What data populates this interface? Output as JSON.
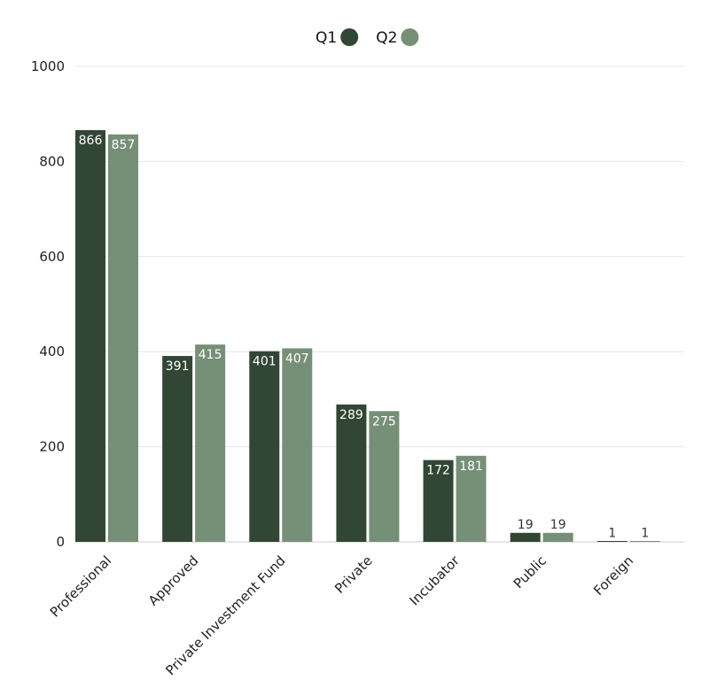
{
  "chart_data": {
    "type": "bar",
    "categories": [
      "Professional",
      "Approved",
      "Private Investment Fund",
      "Private",
      "Incubator",
      "Public",
      "Foreign"
    ],
    "series": [
      {
        "name": "Q1",
        "color": "#324635",
        "values": [
          866,
          391,
          401,
          289,
          172,
          19,
          1
        ]
      },
      {
        "name": "Q2",
        "color": "#768f77",
        "values": [
          857,
          415,
          407,
          275,
          181,
          19,
          1
        ]
      }
    ],
    "yticks": [
      0,
      200,
      400,
      600,
      800,
      1000
    ],
    "ylim": [
      0,
      1000
    ],
    "grid": true,
    "legend": "top-center",
    "data_labels": true
  }
}
